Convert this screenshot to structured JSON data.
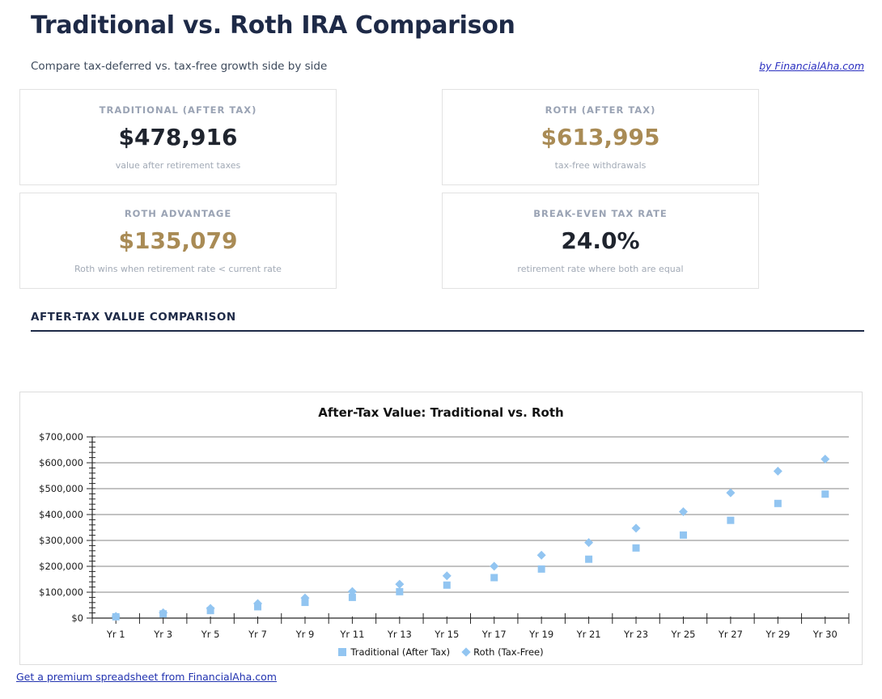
{
  "header": {
    "title": "Traditional vs. Roth IRA Comparison",
    "subtitle": "Compare tax-deferred vs. tax-free growth side by side",
    "byline": "by FinancialAha.com"
  },
  "cards": [
    {
      "label": "TRADITIONAL (AFTER TAX)",
      "value": "$478,916",
      "desc": "value after retirement taxes",
      "accent": "dark"
    },
    {
      "label": "ROTH (AFTER TAX)",
      "value": "$613,995",
      "desc": "tax-free withdrawals",
      "accent": "gold"
    },
    {
      "label": "ROTH ADVANTAGE",
      "value": "$135,079",
      "desc": "Roth wins when retirement rate < current rate",
      "accent": "gold"
    },
    {
      "label": "BREAK-EVEN TAX RATE",
      "value": "24.0%",
      "desc": "retirement rate where both are equal",
      "accent": "dark"
    }
  ],
  "section": {
    "heading": "AFTER-TAX VALUE COMPARISON"
  },
  "footer": {
    "link": "Get a premium spreadsheet from FinancialAha.com"
  },
  "colors": {
    "accent_navy": "#1e2a47",
    "accent_gold": "#a98b55",
    "marker_blue": "#92c5f1",
    "grid_gray": "#858585",
    "axis_dark": "#262626"
  },
  "chart_data": {
    "type": "scatter",
    "title": "After-Tax Value: Traditional vs. Roth",
    "categories": [
      "Yr 1",
      "Yr 3",
      "Yr 5",
      "Yr 7",
      "Yr 9",
      "Yr 11",
      "Yr 13",
      "Yr 15",
      "Yr 17",
      "Yr 19",
      "Yr 21",
      "Yr 23",
      "Yr 25",
      "Yr 27",
      "Yr 29",
      "Yr 30"
    ],
    "series": [
      {
        "name": "Traditional (After Tax)",
        "marker": "square",
        "color": "#92c5f1",
        "values": [
          5070,
          16300,
          29156,
          43876,
          60728,
          80023,
          102113,
          127404,
          156360,
          189511,
          227467,
          270921,
          320672,
          377633,
          442847,
          478916
        ]
      },
      {
        "name": "Roth (Tax-Free)",
        "marker": "diamond",
        "color": "#92c5f1",
        "values": [
          6500,
          20897,
          37380,
          56251,
          77857,
          102593,
          130914,
          163339,
          200462,
          242963,
          291624,
          347334,
          411118,
          484145,
          567753,
          613995
        ]
      }
    ],
    "xlabel": "",
    "ylabel": "",
    "ylim": [
      0,
      700000
    ],
    "ytick_step": 100000,
    "ytick_minor_step": 20000,
    "ytick_labels": [
      "$0",
      "$100,000",
      "$200,000",
      "$300,000",
      "$400,000",
      "$500,000",
      "$600,000",
      "$700,000"
    ],
    "grid": "horizontal-major",
    "legend_position": "bottom-center"
  }
}
